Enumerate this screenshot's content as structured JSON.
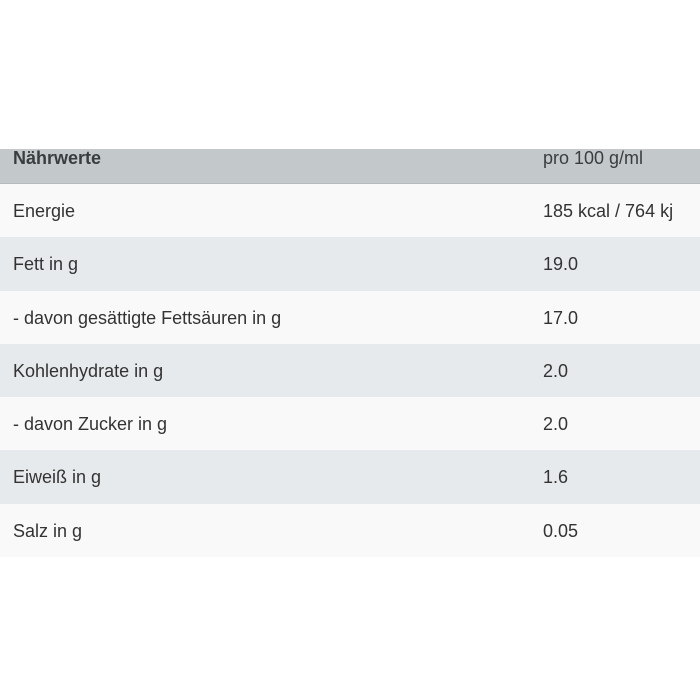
{
  "table": {
    "header": {
      "name": "Nährwerte",
      "value": "pro 100 g/ml"
    },
    "rows": [
      {
        "name": "Energie",
        "value": "185 kcal / 764 kj"
      },
      {
        "name": "Fett in g",
        "value": "19.0"
      },
      {
        "name": "- davon gesättigte Fettsäuren in g",
        "value": "17.0"
      },
      {
        "name": "Kohlenhydrate in g",
        "value": "2.0"
      },
      {
        "name": "- davon Zucker in g",
        "value": "2.0"
      },
      {
        "name": "Eiweiß in g",
        "value": "1.6"
      },
      {
        "name": "Salz in g",
        "value": "0.05"
      }
    ]
  }
}
